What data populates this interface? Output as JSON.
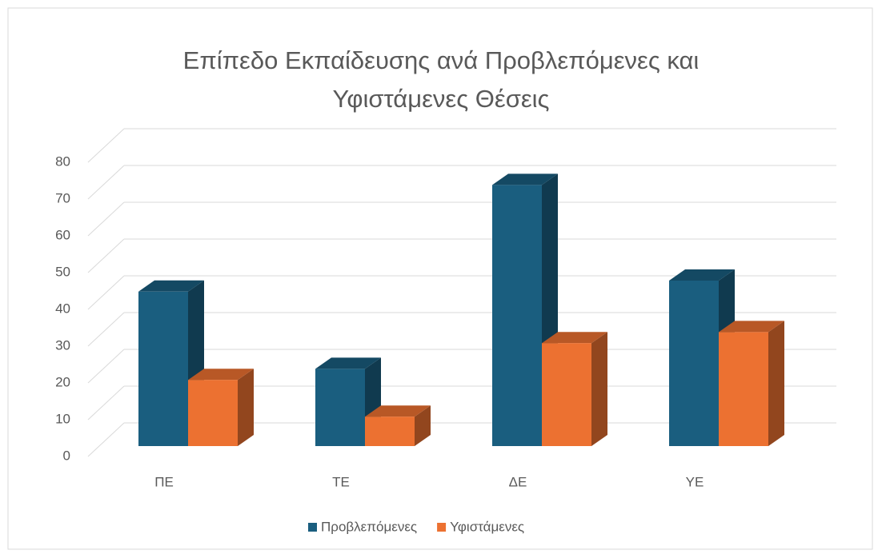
{
  "chart_data": {
    "type": "bar3d",
    "title": "Επίπεδο Εκπαίδευσης ανά Προβλεπόμενες και Υφιστάμενες Θέσεις",
    "categories": [
      "ΠΕ",
      "ΤΕ",
      "ΔΕ",
      "ΥΕ"
    ],
    "series": [
      {
        "name": "Προβλεπόμενες",
        "color": "#1a5e7f",
        "values": [
          42,
          21,
          71,
          45
        ]
      },
      {
        "name": "Υφιστάμενες",
        "color": "#ec7131",
        "values": [
          18,
          8,
          28,
          31
        ]
      }
    ],
    "ylim": [
      0,
      80
    ],
    "yticks": [
      0,
      10,
      20,
      30,
      40,
      50,
      60,
      70,
      80
    ],
    "grid": true,
    "legend": "bottom"
  }
}
